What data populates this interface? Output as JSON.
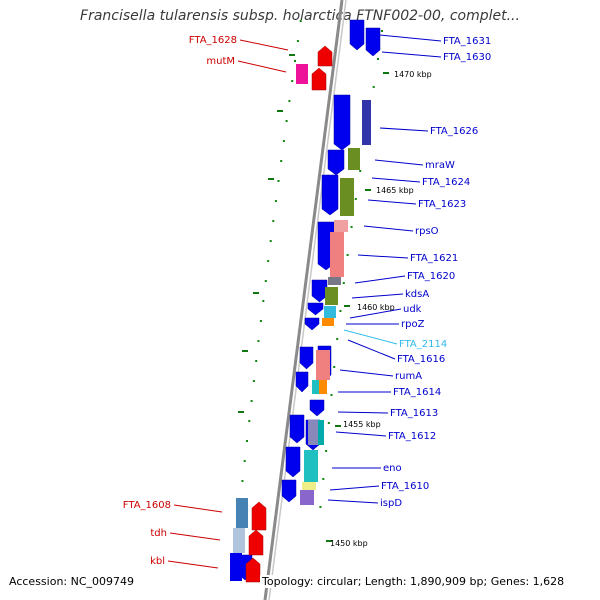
{
  "title": "Francisella tularensis subsp. holarctica FTNF002-00, complet...",
  "footer": {
    "accession": "Accession: NC_009749",
    "summary": "Topology: circular; Length: 1,890,909 bp; Genes: 1,628"
  },
  "ticks": [
    {
      "label": "1470 kbp"
    },
    {
      "label": "1465 kbp"
    },
    {
      "label": "1460 kbp"
    },
    {
      "label": "1455 kbp"
    },
    {
      "label": "1450 kbp"
    }
  ],
  "genes_right": [
    {
      "label": "FTA_1631",
      "color": "#0000cc"
    },
    {
      "label": "FTA_1630",
      "color": "#0000cc"
    },
    {
      "label": "FTA_1626",
      "color": "#0000cc"
    },
    {
      "label": "mraW",
      "color": "#0000cc"
    },
    {
      "label": "FTA_1624",
      "color": "#0000cc"
    },
    {
      "label": "FTA_1623",
      "color": "#0000cc"
    },
    {
      "label": "rpsO",
      "color": "#0000cc"
    },
    {
      "label": "FTA_1621",
      "color": "#0000cc"
    },
    {
      "label": "FTA_1620",
      "color": "#0000cc"
    },
    {
      "label": "kdsA",
      "color": "#0000cc"
    },
    {
      "label": "udk",
      "color": "#0000cc"
    },
    {
      "label": "rpoZ",
      "color": "#0000cc"
    },
    {
      "label": "FTA_2114",
      "color": "#33bbee"
    },
    {
      "label": "FTA_1616",
      "color": "#0000cc"
    },
    {
      "label": "rumA",
      "color": "#0000cc"
    },
    {
      "label": "FTA_1614",
      "color": "#0000cc"
    },
    {
      "label": "FTA_1613",
      "color": "#0000cc"
    },
    {
      "label": "FTA_1612",
      "color": "#0000cc"
    },
    {
      "label": "eno",
      "color": "#0000cc"
    },
    {
      "label": "FTA_1610",
      "color": "#0000cc"
    },
    {
      "label": "ispD",
      "color": "#0000cc"
    }
  ],
  "genes_left": [
    {
      "label": "FTA_1628",
      "color": "#cc0000"
    },
    {
      "label": "mutM",
      "color": "#cc0000"
    },
    {
      "label": "FTA_1608",
      "color": "#cc0000"
    },
    {
      "label": "tdh",
      "color": "#cc0000"
    },
    {
      "label": "kbl",
      "color": "#cc0000"
    }
  ],
  "colors": {
    "forward_strand": "#0000ee",
    "reverse_strand": "#ee0000",
    "backbone": "#888888",
    "tick": "#006600"
  }
}
